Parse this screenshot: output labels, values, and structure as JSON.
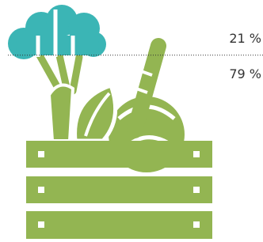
{
  "chart_data": {
    "type": "pictorial",
    "values": [
      21,
      79
    ],
    "value_labels": [
      "21 %",
      "79 %"
    ],
    "colors": [
      "#3bb5b5",
      "#93b552"
    ]
  }
}
